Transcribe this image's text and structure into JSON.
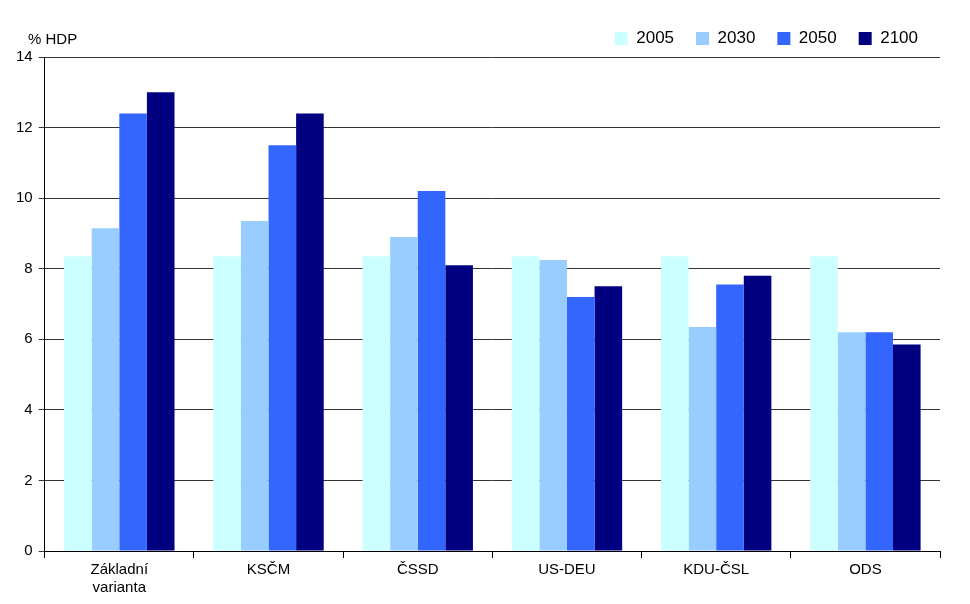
{
  "chart_data": {
    "type": "bar",
    "y_label": "% HDP",
    "categories": [
      "Základní varianta",
      "KSČM",
      "ČSSD",
      "US-DEU",
      "KDU-ČSL",
      "ODS"
    ],
    "series": [
      {
        "name": "2005",
        "color": "#ccffff",
        "values": [
          8.35,
          8.35,
          8.35,
          8.35,
          8.35,
          8.35
        ]
      },
      {
        "name": "2030",
        "color": "#99ccff",
        "values": [
          9.15,
          9.35,
          8.9,
          8.25,
          6.35,
          6.2
        ]
      },
      {
        "name": "2050",
        "color": "#3366ff",
        "values": [
          12.4,
          11.5,
          10.2,
          7.2,
          7.55,
          6.2
        ]
      },
      {
        "name": "2100",
        "color": "#000080",
        "values": [
          13.0,
          12.4,
          8.1,
          7.5,
          7.8,
          5.85
        ]
      }
    ],
    "ylim": [
      0,
      14
    ],
    "yticks": [
      0,
      2,
      4,
      6,
      8,
      10,
      12,
      14
    ],
    "grid": true,
    "legend": "top-right"
  }
}
